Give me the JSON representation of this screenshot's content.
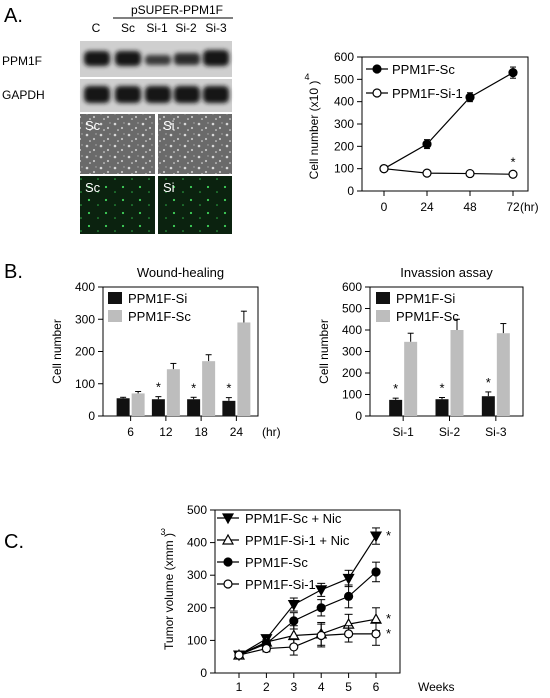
{
  "panels": {
    "a": "A.",
    "b": "B.",
    "c": "C."
  },
  "blot": {
    "construct_label": "pSUPER-PPM1F",
    "lanes": [
      "C",
      "Sc",
      "Si-1",
      "Si-2",
      "Si-3"
    ],
    "rows": [
      "PPM1F",
      "GAPDH"
    ]
  },
  "micro": {
    "bright": [
      "Sc",
      "Si"
    ],
    "fluor": [
      "Sc",
      "Si"
    ]
  },
  "colors": {
    "black": "#111111",
    "gray": "#bdbdbd",
    "blot_bg": "#cfcfcf",
    "fluor_bg": "#0b220f"
  },
  "chart_data": [
    {
      "id": "A-growth",
      "type": "line",
      "title": "",
      "xlabel": "",
      "x_unit": "(hr)",
      "ylabel": "Cell number (x10 )",
      "ylabel_exp": "4",
      "x": [
        0,
        24,
        48,
        72
      ],
      "xlim": [
        0,
        72
      ],
      "ylim": [
        0,
        600
      ],
      "yticks": [
        0,
        100,
        200,
        300,
        400,
        500,
        600
      ],
      "series": [
        {
          "name": "PPM1F-Sc",
          "marker": "filled-circle",
          "values": [
            100,
            210,
            420,
            530
          ],
          "err": [
            0,
            20,
            20,
            25
          ]
        },
        {
          "name": "PPM1F-Si-1",
          "marker": "open-circle",
          "values": [
            100,
            80,
            78,
            75
          ],
          "err": [
            0,
            10,
            10,
            10
          ]
        }
      ],
      "annotations": [
        {
          "x": 72,
          "text": "*"
        }
      ],
      "legend": "top-left"
    },
    {
      "id": "B-wound",
      "type": "bar",
      "title": "Wound-healing",
      "xlabel": "",
      "x_unit": "(hr)",
      "ylabel": "Cell number",
      "categories": [
        "6",
        "12",
        "18",
        "24"
      ],
      "ylim": [
        0,
        400
      ],
      "yticks": [
        0,
        100,
        200,
        300,
        400
      ],
      "series": [
        {
          "name": "PPM1F-Si",
          "color": "#111111",
          "values": [
            55,
            52,
            52,
            47
          ],
          "err": [
            3,
            8,
            6,
            10
          ]
        },
        {
          "name": "PPM1F-Sc",
          "color": "#bdbdbd",
          "values": [
            70,
            145,
            170,
            290
          ],
          "err": [
            6,
            18,
            20,
            35
          ]
        }
      ],
      "annotations": [
        {
          "category": "12",
          "text": "*"
        },
        {
          "category": "18",
          "text": "*"
        },
        {
          "category": "24",
          "text": "*"
        }
      ],
      "legend": "top-left"
    },
    {
      "id": "B-invasion",
      "type": "bar",
      "title": "Invassion assay",
      "xlabel": "",
      "ylabel": "Cell number",
      "categories": [
        "Si-1",
        "Si-2",
        "Si-3"
      ],
      "ylim": [
        0,
        600
      ],
      "yticks": [
        0,
        100,
        200,
        300,
        400,
        500,
        600
      ],
      "series": [
        {
          "name": "PPM1F-Si",
          "color": "#111111",
          "values": [
            75,
            78,
            92
          ],
          "err": [
            8,
            8,
            20
          ]
        },
        {
          "name": "PPM1F-Sc",
          "color": "#bdbdbd",
          "values": [
            345,
            400,
            385
          ],
          "err": [
            40,
            50,
            45
          ]
        }
      ],
      "annotations": [
        {
          "category": "Si-1",
          "text": "*"
        },
        {
          "category": "Si-2",
          "text": "*"
        },
        {
          "category": "Si-3",
          "text": "*"
        }
      ],
      "legend": "top-left"
    },
    {
      "id": "C-tumor",
      "type": "line",
      "title": "",
      "xlabel": "",
      "x_unit": "Weeks",
      "ylabel": "Tumor volume (xmm )",
      "ylabel_exp": "3",
      "x": [
        1,
        2,
        3,
        4,
        5,
        6
      ],
      "xlim": [
        1,
        6
      ],
      "ylim": [
        0,
        500
      ],
      "yticks": [
        0,
        100,
        200,
        300,
        400,
        500
      ],
      "series": [
        {
          "name": "PPM1F-Sc + Nic",
          "marker": "filled-triangle-down",
          "values": [
            55,
            105,
            210,
            255,
            290,
            420
          ],
          "err": [
            5,
            10,
            20,
            20,
            25,
            25
          ]
        },
        {
          "name": "PPM1F-Si-1 + Nic",
          "marker": "open-triangle-up",
          "values": [
            55,
            95,
            115,
            120,
            150,
            165
          ],
          "err": [
            5,
            15,
            30,
            35,
            30,
            35
          ]
        },
        {
          "name": "PPM1F-Sc",
          "marker": "filled-circle",
          "values": [
            55,
            90,
            160,
            200,
            235,
            310
          ],
          "err": [
            5,
            12,
            25,
            25,
            35,
            30
          ]
        },
        {
          "name": "PPM1F-Si-1",
          "marker": "open-circle",
          "values": [
            55,
            75,
            80,
            115,
            120,
            120
          ],
          "err": [
            5,
            10,
            25,
            35,
            25,
            35
          ]
        }
      ],
      "annotations": [
        {
          "series": "PPM1F-Sc + Nic",
          "x": 6,
          "text": "*"
        },
        {
          "series": "PPM1F-Si-1 + Nic",
          "x": 6,
          "text": "*"
        },
        {
          "series": "PPM1F-Si-1",
          "x": 6,
          "text": "*"
        }
      ],
      "legend": "top-left"
    }
  ]
}
